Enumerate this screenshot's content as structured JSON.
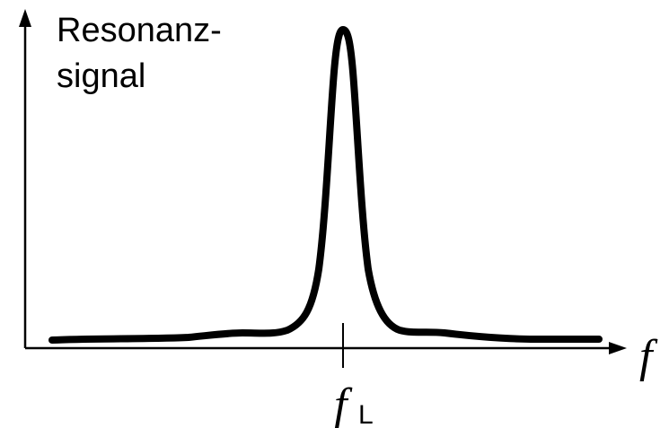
{
  "diagram": {
    "y_axis_label_line1": "Resonanz-",
    "y_axis_label_line2": "signal",
    "x_axis_label": "f",
    "peak_label_main": "f",
    "peak_label_sub": "L",
    "line_color": "#000000"
  }
}
